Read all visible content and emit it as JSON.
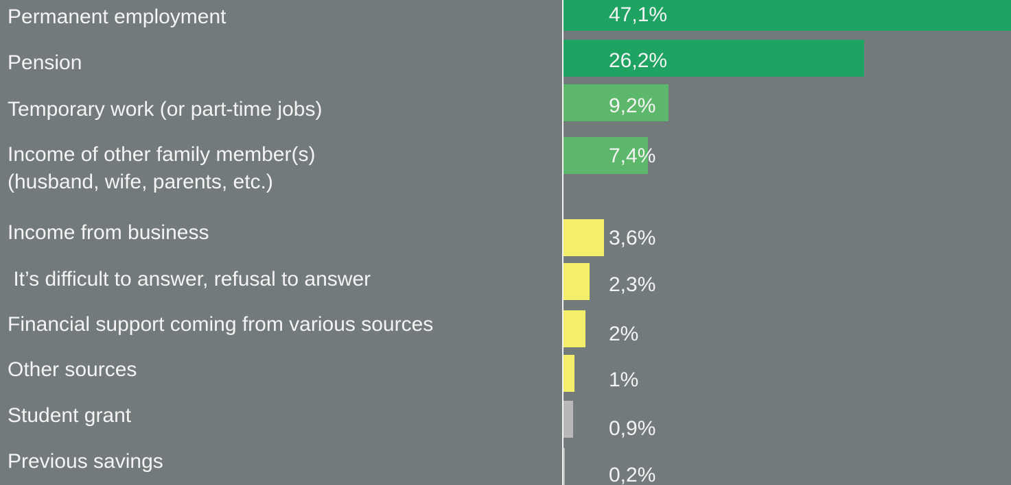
{
  "chart_data": {
    "type": "bar",
    "orientation": "horizontal",
    "categories": [
      "Permanent employment",
      "Pension",
      "Temporary work (or part-time jobs)",
      "Income of other family member(s)\n(husband, wife, parents, etc.)",
      "Income from business",
      " It’s difficult to answer, refusal to answer",
      "Financial support coming from various sources",
      "Other sources",
      "Student grant",
      "Previous savings"
    ],
    "values": [
      47.1,
      26.2,
      9.2,
      7.4,
      3.6,
      2.3,
      2,
      1,
      0.9,
      0.2
    ],
    "value_labels": [
      "47,1%",
      "26,2%",
      "9,2%",
      "7,4%",
      "3,6%",
      "2,3%",
      "2%",
      "1%",
      "0,9%",
      "0,2%"
    ],
    "colors": [
      "#1ea363",
      "#1ea363",
      "#5db86b",
      "#5db86b",
      "#f5ee6b",
      "#f5ee6b",
      "#f5ee6b",
      "#f5ee6b",
      "#b8b8b8",
      "#b8b8b8"
    ],
    "xlim": [
      0,
      39
    ]
  }
}
